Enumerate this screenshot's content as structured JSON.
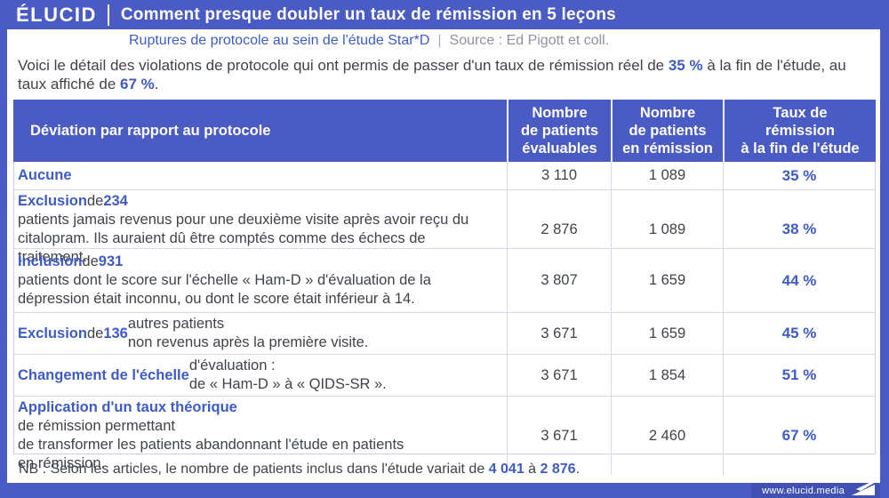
{
  "colors": {
    "brand": "#4a5bc4",
    "accent": "#3e5cc4"
  },
  "header": {
    "logo": "ÉLUCID",
    "title": "Comment presque doubler un taux de rémission en 5 leçons",
    "subtitle": "Ruptures de protocole au sein de l'étude Star*D",
    "separator": "|",
    "source": "Source : Ed Pigott et coll."
  },
  "intro": {
    "segments": [
      {
        "t": "Voici le détail des violations de protocole qui ont permis de passer d'un taux de rémission réel de "
      },
      {
        "t": "35 %",
        "b": true
      },
      {
        "t": " à la fin de l'étude, au taux affiché de "
      },
      {
        "t": "67 %",
        "b": true
      },
      {
        "t": "."
      }
    ]
  },
  "table": {
    "columns": [
      "Déviation par rapport au protocole",
      "Nombre\nde patients\névaluables",
      "Nombre\nde patients\nen rémission",
      "Taux de\nrémission\nà la fin de l'étude"
    ],
    "rows": [
      {
        "label": [
          {
            "t": "Aucune",
            "b": true
          }
        ],
        "evaluables": "3 110",
        "remission": "1 089",
        "rate": "35 %"
      },
      {
        "label": [
          {
            "t": "Exclusion",
            "b": true
          },
          {
            "t": " de "
          },
          {
            "t": "234",
            "b": true
          },
          {
            "t": " patients jamais revenus pour une deuxième visite après avoir reçu du citalopram. Ils auraient dû être comptés comme des échecs de traitement."
          }
        ],
        "evaluables": "2 876",
        "remission": "1 089",
        "rate": "38 %"
      },
      {
        "label": [
          {
            "t": "Inclusion",
            "b": true
          },
          {
            "t": " de "
          },
          {
            "t": "931",
            "b": true
          },
          {
            "t": " patients dont le score sur l'échelle « Ham-D » d'évaluation de la dépression était inconnu, ou dont le score était inférieur à 14."
          }
        ],
        "evaluables": "3 807",
        "remission": "1 659",
        "rate": "44 %"
      },
      {
        "label": [
          {
            "t": "Exclusion",
            "b": true
          },
          {
            "t": " de "
          },
          {
            "t": "136",
            "b": true
          },
          {
            "t": " autres patients\nnon revenus après la première visite."
          }
        ],
        "evaluables": "3 671",
        "remission": "1 659",
        "rate": "45 %"
      },
      {
        "label": [
          {
            "t": "Changement de l'échelle",
            "b": true
          },
          {
            "t": " d'évaluation :\nde « Ham-D » à « QIDS-SR »."
          }
        ],
        "evaluables": "3 671",
        "remission": "1 854",
        "rate": "51 %"
      },
      {
        "label": [
          {
            "t": "Application d'un taux théorique",
            "b": true
          },
          {
            "t": " de rémission permettant\nde transformer les patients abandonnant l'étude en patients\nen rémission."
          }
        ],
        "evaluables": "3 671",
        "remission": "2 460",
        "rate": "67 %"
      }
    ]
  },
  "note": {
    "segments": [
      {
        "t": "NB : Selon les articles, le nombre de patients inclus dans l'étude variait de "
      },
      {
        "t": "4 041",
        "b": true
      },
      {
        "t": " à "
      },
      {
        "t": "2 876",
        "b": true
      },
      {
        "t": "."
      }
    ]
  },
  "footer": {
    "url": "www.elucid.media"
  },
  "chart_data": {
    "type": "table",
    "title": "Comment presque doubler un taux de rémission en 5 leçons",
    "subtitle": "Ruptures de protocole au sein de l'étude Star*D",
    "source": "Ed Pigott et coll.",
    "columns": [
      "Déviation par rapport au protocole",
      "Nombre de patients évaluables",
      "Nombre de patients en rémission",
      "Taux de rémission à la fin de l'étude"
    ],
    "rows": [
      [
        "Aucune",
        3110,
        1089,
        "35 %"
      ],
      [
        "Exclusion de 234 patients jamais revenus pour une deuxième visite après avoir reçu du citalopram. Ils auraient dû être comptés comme des échecs de traitement.",
        2876,
        1089,
        "38 %"
      ],
      [
        "Inclusion de 931 patients dont le score sur l'échelle « Ham-D » d'évaluation de la dépression était inconnu, ou dont le score était inférieur à 14.",
        3807,
        1659,
        "44 %"
      ],
      [
        "Exclusion de 136 autres patients non revenus après la première visite.",
        3671,
        1659,
        "45 %"
      ],
      [
        "Changement de l'échelle d'évaluation : de « Ham-D » à « QIDS-SR ».",
        3671,
        1854,
        "51 %"
      ],
      [
        "Application d'un taux théorique de rémission permettant de transformer les patients abandonnant l'étude en patients en rémission.",
        3671,
        2460,
        "67 %"
      ]
    ],
    "note": "NB : Selon les articles, le nombre de patients inclus dans l'étude variait de 4 041 à 2 876.",
    "real_remission_rate": "35 %",
    "displayed_remission_rate": "67 %"
  }
}
